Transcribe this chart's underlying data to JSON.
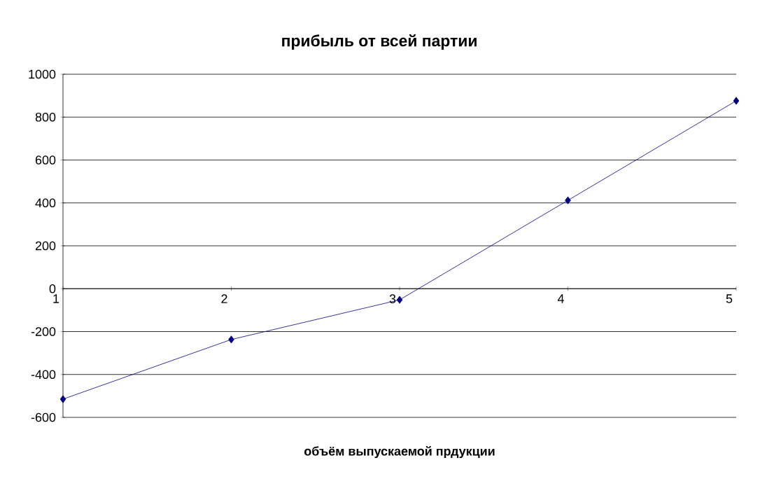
{
  "chart_data": {
    "type": "line",
    "title": "прибыль от всей партии",
    "xlabel": "объём выпускаемой прдукции",
    "categories": [
      "1",
      "2",
      "3",
      "4",
      "5"
    ],
    "series": [
      {
        "color": "#000080",
        "values": [
          -515,
          -237,
          -52,
          412,
          876
        ]
      }
    ],
    "ylim": [
      -600,
      1000
    ],
    "yticks": [
      -600,
      -400,
      -200,
      0,
      200,
      400,
      600,
      800,
      1000
    ],
    "grid": "y",
    "marker": "diamond",
    "line_style": "solid"
  }
}
